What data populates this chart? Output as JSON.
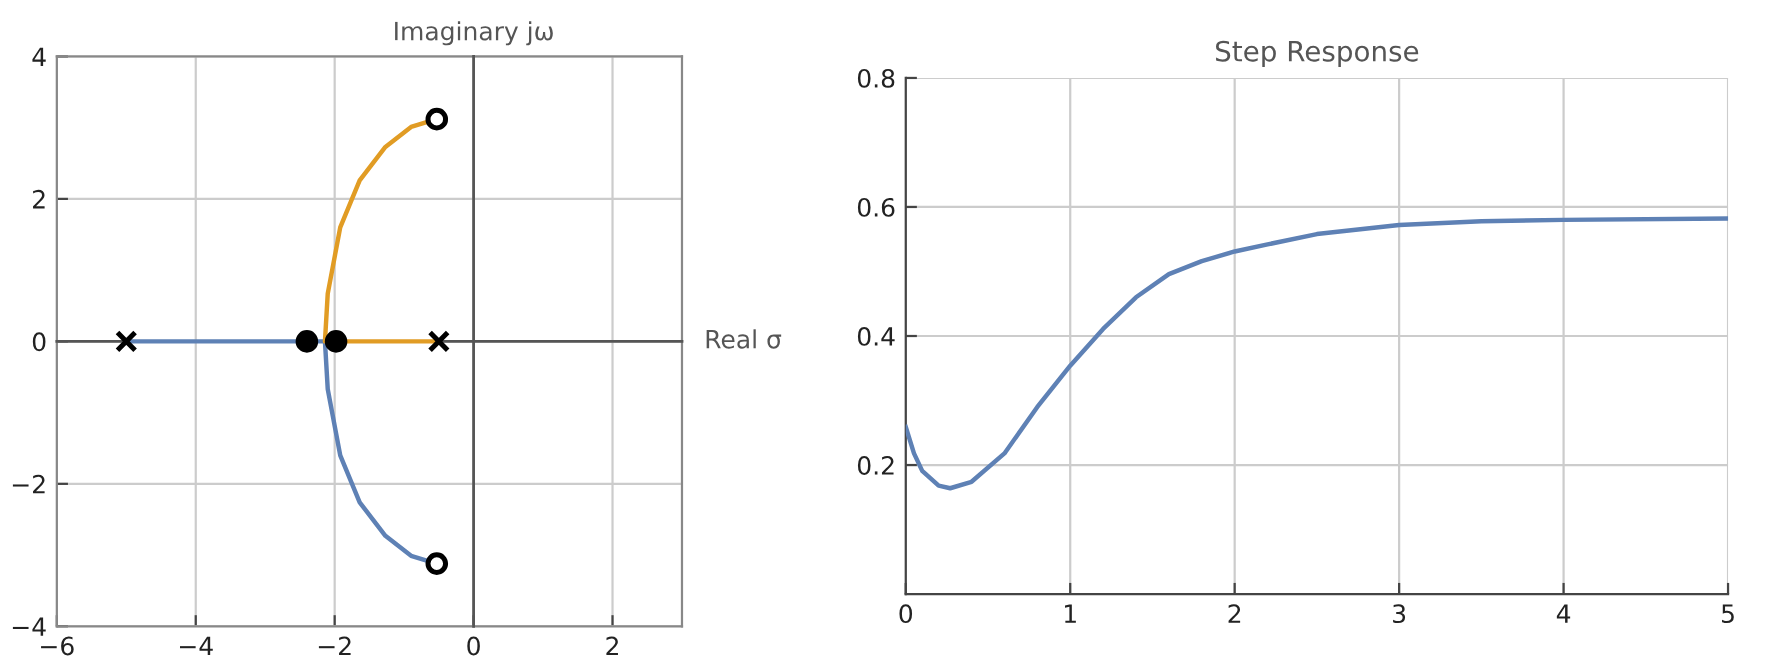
{
  "chart_data": [
    {
      "type": "line",
      "xlabel": "Real σ",
      "ylabel": "Imaginary jω",
      "xlim": [
        -6,
        3
      ],
      "ylim": [
        -4,
        4
      ],
      "xticks": [
        -6,
        -4,
        -2,
        0,
        2
      ],
      "yticks": [
        -4,
        -2,
        0,
        2,
        4
      ],
      "grid": true,
      "legend": false,
      "series": [
        {
          "type": "line",
          "color": "#5e81b5",
          "x": [
            -5,
            -2.14,
            -2.1,
            -1.92,
            -1.64,
            -1.27,
            -0.9,
            -0.53
          ],
          "values": [
            0,
            0,
            -0.67,
            -1.6,
            -2.26,
            -2.73,
            -3.01,
            -3.12
          ]
        },
        {
          "type": "line",
          "color": "#e19c24",
          "x": [
            -0.5,
            -2.14,
            -2.1,
            -1.92,
            -1.64,
            -1.27,
            -0.9,
            -0.53
          ],
          "values": [
            0,
            0,
            0.67,
            1.6,
            2.26,
            2.73,
            3.01,
            3.12
          ]
        },
        {
          "type": "scatter",
          "marker": "cross",
          "color": "#000000",
          "x": [
            -5,
            -0.5
          ],
          "values": [
            0,
            0
          ]
        },
        {
          "type": "scatter",
          "marker": "circle",
          "color": "#000000",
          "x": [
            -2.4,
            -1.98
          ],
          "values": [
            0,
            0
          ]
        },
        {
          "type": "scatter",
          "marker": "circle",
          "color": "#ffffff",
          "x": [
            -0.53,
            -0.53
          ],
          "values": [
            3.12,
            -3.12
          ]
        }
      ]
    },
    {
      "type": "line",
      "title": "Step Response",
      "xlim": [
        0,
        5
      ],
      "ylim": [
        0,
        0.8
      ],
      "xticks": [
        0,
        1,
        2,
        3,
        4,
        5
      ],
      "yticks": [
        0.2,
        0.4,
        0.6,
        0.8
      ],
      "grid": true,
      "legend": false,
      "series": [
        {
          "color": "#5e81b5",
          "x": [
            0,
            0.05,
            0.1,
            0.2,
            0.27,
            0.4,
            0.6,
            0.8,
            1.0,
            1.2,
            1.4,
            1.6,
            1.8,
            2.0,
            2.2,
            2.5,
            3.0,
            3.5,
            4.0,
            5.0
          ],
          "values": [
            0.259,
            0.218,
            0.191,
            0.168,
            0.164,
            0.174,
            0.218,
            0.29,
            0.354,
            0.411,
            0.46,
            0.496,
            0.516,
            0.531,
            0.542,
            0.558,
            0.572,
            0.578,
            0.58,
            0.582
          ]
        }
      ]
    }
  ]
}
